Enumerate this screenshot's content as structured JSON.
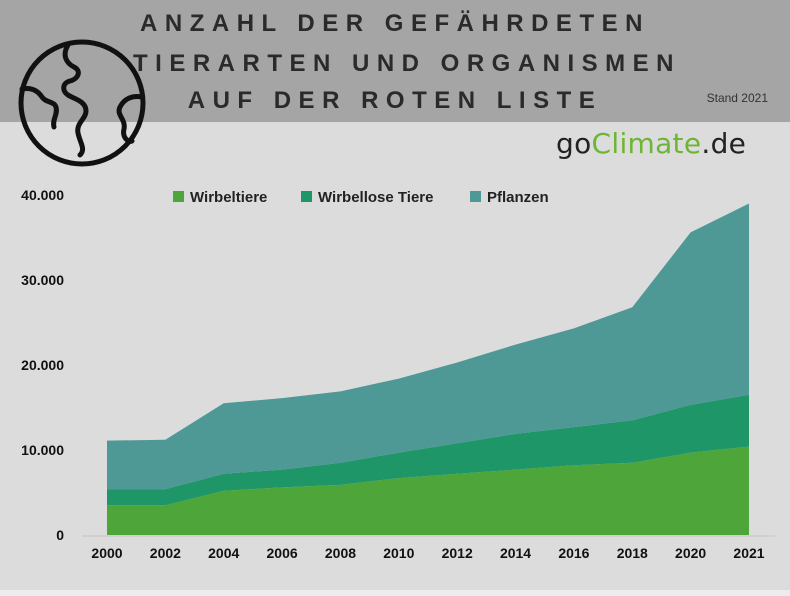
{
  "header": {
    "title_lines": [
      "ANZAHL DER GEFÄHRDETEN",
      "TIERARTEN UND ORGANISMEN",
      "AUF DER ROTEN LISTE"
    ],
    "stand": "Stand 2021",
    "background": "#a5a5a5",
    "icon": "globe-icon"
  },
  "brand": {
    "go": "go",
    "climate": "Climate",
    "de": ".de",
    "accent": "#6db633"
  },
  "chart_data": {
    "type": "area",
    "stacked": true,
    "title": "ANZAHL DER GEFÄHRDETEN TIERARTEN UND ORGANISMEN AUF DER ROTEN LISTE",
    "categories": [
      "2000",
      "2002",
      "2004",
      "2006",
      "2008",
      "2010",
      "2012",
      "2014",
      "2016",
      "2018",
      "2020",
      "2021"
    ],
    "series": [
      {
        "name": "Wirbeltiere",
        "color": "#4ea63a",
        "values": [
          3500,
          3500,
          5200,
          5600,
          5900,
          6700,
          7200,
          7700,
          8200,
          8500,
          9700,
          10400
        ]
      },
      {
        "name": "Wirbellose Tiere",
        "color": "#1e9668",
        "values": [
          1900,
          1900,
          2000,
          2100,
          2600,
          3000,
          3600,
          4200,
          4500,
          5000,
          5600,
          6100
        ]
      },
      {
        "name": "Pflanzen",
        "color": "#4e9895",
        "values": [
          5700,
          5800,
          8300,
          8400,
          8400,
          8700,
          9500,
          10500,
          11600,
          13300,
          20300,
          22500
        ]
      }
    ],
    "ylim": [
      0,
      40000
    ],
    "yticks": [
      "0",
      "10.000",
      "20.000",
      "30.000",
      "40.000"
    ],
    "ytick_values": [
      0,
      10000,
      20000,
      30000,
      40000
    ],
    "legend_position": "top",
    "grid": false
  }
}
